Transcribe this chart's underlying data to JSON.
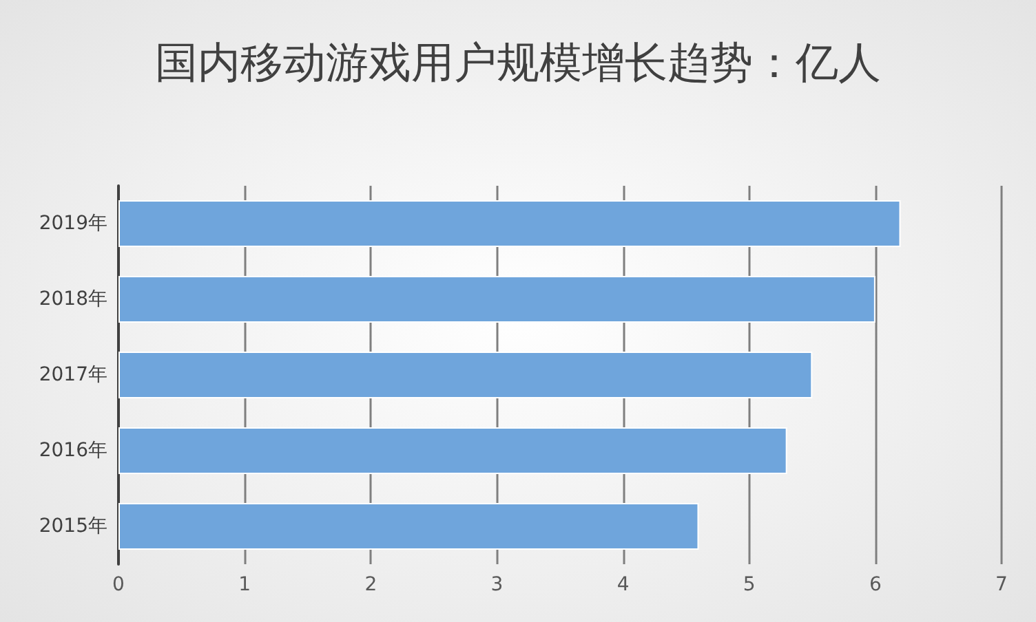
{
  "chart_data": {
    "type": "bar",
    "orientation": "horizontal",
    "title": "国内移动游戏用户规模增长趋势：亿人",
    "categories": [
      "2019年",
      "2018年",
      "2017年",
      "2016年",
      "2015年"
    ],
    "values": [
      6.2,
      6.0,
      5.5,
      5.3,
      4.6
    ],
    "color": "#6fa5dc",
    "xlim": [
      0,
      7
    ],
    "xticks": [
      0,
      1,
      2,
      3,
      4,
      5,
      6,
      7
    ],
    "grid": "x"
  }
}
